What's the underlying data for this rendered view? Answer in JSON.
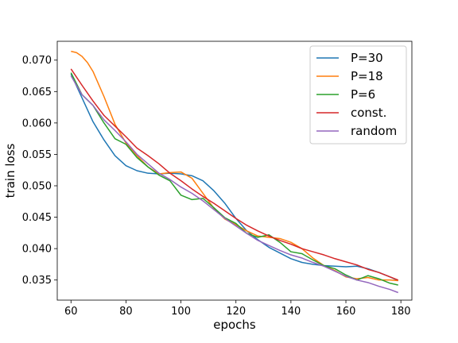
{
  "chart_data": {
    "type": "line",
    "xlabel": "epochs",
    "ylabel": "train loss",
    "xlim": [
      55,
      184
    ],
    "ylim": [
      0.0318,
      0.073
    ],
    "xticks": [
      60,
      80,
      100,
      120,
      140,
      160,
      180
    ],
    "yticks": [
      0.035,
      0.04,
      0.045,
      0.05,
      0.055,
      0.06,
      0.065,
      0.07
    ],
    "ytick_labels": [
      "0.035",
      "0.040",
      "0.045",
      "0.050",
      "0.055",
      "0.060",
      "0.065",
      "0.070"
    ],
    "legend_position": "top-right",
    "grid": false,
    "series": [
      {
        "name": "P=30",
        "color": "#1f77b4",
        "x": [
          60,
          64,
          68,
          72,
          76,
          80,
          84,
          88,
          92,
          96,
          100,
          104,
          108,
          112,
          116,
          120,
          124,
          128,
          132,
          136,
          140,
          144,
          148,
          152,
          156,
          160,
          164,
          168,
          172,
          176,
          179
        ],
        "y": [
          0.0678,
          0.064,
          0.0602,
          0.0573,
          0.0548,
          0.0532,
          0.0524,
          0.052,
          0.0519,
          0.052,
          0.0519,
          0.0516,
          0.0508,
          0.0492,
          0.0472,
          0.0448,
          0.0428,
          0.0414,
          0.0402,
          0.0393,
          0.0384,
          0.0378,
          0.0375,
          0.0373,
          0.0372,
          0.0371,
          0.0372,
          0.0368,
          0.0362,
          0.0355,
          0.0349
        ]
      },
      {
        "name": "P=18",
        "color": "#ff7f0e",
        "x": [
          60,
          62,
          64,
          66,
          68,
          72,
          76,
          80,
          84,
          88,
          92,
          96,
          100,
          104,
          108,
          112,
          116,
          120,
          124,
          128,
          132,
          136,
          140,
          144,
          148,
          152,
          156,
          160,
          164,
          168,
          172,
          176,
          179
        ],
        "y": [
          0.0714,
          0.0712,
          0.0706,
          0.0696,
          0.0682,
          0.0642,
          0.0598,
          0.0568,
          0.0548,
          0.053,
          0.0519,
          0.0521,
          0.0522,
          0.0512,
          0.0488,
          0.0464,
          0.0447,
          0.0438,
          0.0428,
          0.042,
          0.0418,
          0.0416,
          0.041,
          0.04,
          0.0385,
          0.0373,
          0.0365,
          0.0355,
          0.0352,
          0.0354,
          0.035,
          0.035,
          0.0349
        ]
      },
      {
        "name": "P=6",
        "color": "#2ca02c",
        "x": [
          60,
          64,
          68,
          72,
          76,
          80,
          84,
          88,
          92,
          96,
          100,
          104,
          108,
          112,
          116,
          120,
          124,
          128,
          132,
          136,
          140,
          144,
          148,
          152,
          156,
          160,
          164,
          168,
          172,
          176,
          179
        ],
        "y": [
          0.068,
          0.0645,
          0.0628,
          0.06,
          0.0575,
          0.0566,
          0.0545,
          0.053,
          0.0517,
          0.0508,
          0.0485,
          0.0478,
          0.048,
          0.0465,
          0.0449,
          0.044,
          0.0424,
          0.0418,
          0.0422,
          0.041,
          0.0395,
          0.0392,
          0.0382,
          0.0373,
          0.0368,
          0.0358,
          0.035,
          0.0357,
          0.0352,
          0.0345,
          0.0342
        ]
      },
      {
        "name": "const.",
        "color": "#d62728",
        "x": [
          60,
          64,
          68,
          72,
          76,
          80,
          84,
          88,
          92,
          96,
          100,
          104,
          108,
          112,
          116,
          120,
          124,
          128,
          132,
          136,
          140,
          144,
          148,
          152,
          156,
          160,
          164,
          168,
          172,
          176,
          179
        ],
        "y": [
          0.0686,
          0.066,
          0.0635,
          0.0612,
          0.0595,
          0.0578,
          0.056,
          0.0548,
          0.0535,
          0.052,
          0.0508,
          0.0495,
          0.0483,
          0.0472,
          0.046,
          0.0448,
          0.0437,
          0.0428,
          0.042,
          0.0413,
          0.0407,
          0.04,
          0.0395,
          0.039,
          0.0384,
          0.0379,
          0.0374,
          0.0367,
          0.0362,
          0.0355,
          0.035
        ]
      },
      {
        "name": "random",
        "color": "#9467bd",
        "x": [
          60,
          64,
          68,
          72,
          76,
          80,
          84,
          88,
          92,
          96,
          100,
          104,
          108,
          112,
          116,
          120,
          124,
          128,
          132,
          136,
          140,
          144,
          148,
          152,
          156,
          160,
          164,
          168,
          172,
          176,
          179
        ],
        "y": [
          0.0675,
          0.0645,
          0.0628,
          0.0605,
          0.0588,
          0.057,
          0.055,
          0.0535,
          0.052,
          0.051,
          0.0498,
          0.0488,
          0.0476,
          0.0462,
          0.0448,
          0.0436,
          0.0424,
          0.0413,
          0.0405,
          0.0397,
          0.039,
          0.0385,
          0.0378,
          0.0372,
          0.0364,
          0.0356,
          0.035,
          0.0346,
          0.034,
          0.0335,
          0.033
        ]
      }
    ]
  }
}
